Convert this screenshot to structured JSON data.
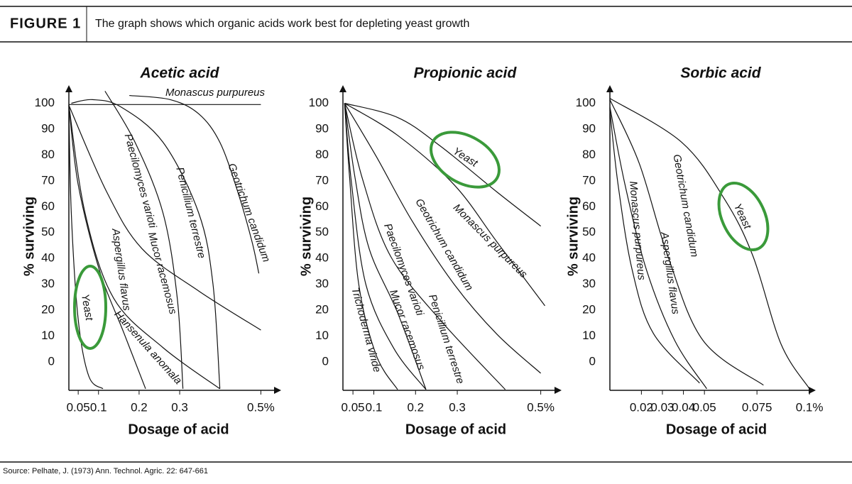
{
  "header": {
    "label": "FIGURE 1",
    "caption": "The graph shows which organic acids work best for depleting yeast growth"
  },
  "source": "Source: Pelhate, J. (1973) Ann. Technol. Agric. 22: 647-661",
  "chart_data": [
    {
      "type": "line",
      "title": "Acetic acid",
      "x_label": "Dosage of acid",
      "y_label": "% surviving",
      "xlim": [
        0.027,
        0.55
      ],
      "ylim": [
        -11,
        107
      ],
      "xticks": [
        0.05,
        0.1,
        0.2,
        0.3,
        {
          "value": 0.5,
          "label": "0.5%"
        }
      ],
      "yticks": [
        0,
        10,
        20,
        30,
        40,
        50,
        60,
        70,
        80,
        90,
        100
      ],
      "series": [
        {
          "name": "Monascus purpureus",
          "color": "#111111",
          "x": [
            0.027,
            0.5
          ],
          "values": [
            99.5,
            99.5
          ]
        },
        {
          "name": "Geotrichum candidum",
          "color": "#111111",
          "x": [
            0.176,
            0.277,
            0.347,
            0.399,
            0.443,
            0.478,
            0.495
          ],
          "values": [
            103,
            101.4,
            95.9,
            84.9,
            65.8,
            46.6,
            34.2
          ]
        },
        {
          "name": "Penicillium terrestre",
          "color": "#111111",
          "x": [
            0.033,
            0.085,
            0.155,
            0.259,
            0.347,
            0.382,
            0.399
          ],
          "values": [
            100,
            101.4,
            98.6,
            84.9,
            57.5,
            30.1,
            -10.4
          ]
        },
        {
          "name": "Paecilomyces varioti",
          "color": "#111111",
          "x": [
            0.116,
            0.19,
            0.259,
            0.294,
            0.308
          ],
          "values": [
            104.7,
            84.9,
            57.5,
            24.7,
            -10.4
          ]
        },
        {
          "name": "Mucor racemosus",
          "color": "#111111",
          "x": [
            0.027,
            0.12,
            0.207,
            0.347,
            0.5
          ],
          "values": [
            99.2,
            65.8,
            43.8,
            27.4,
            12.3
          ]
        },
        {
          "name": "Aspergillus flavus",
          "color": "#111111",
          "x": [
            0.027,
            0.05,
            0.102,
            0.163,
            0.216
          ],
          "values": [
            99.2,
            68.5,
            35.6,
            11,
            -10.4
          ]
        },
        {
          "name": "Hansenula anomala",
          "color": "#111111",
          "x": [
            0.027,
            0.067,
            0.137,
            0.259,
            0.399
          ],
          "values": [
            99.2,
            57.5,
            24.7,
            5.5,
            -10.4
          ]
        },
        {
          "name": "Yeast",
          "color": "#111111",
          "x": [
            0.027,
            0.033,
            0.05,
            0.076,
            0.111
          ],
          "values": [
            99.2,
            57.5,
            16.4,
            -5.5,
            -10.4
          ]
        }
      ]
    },
    {
      "type": "line",
      "title": "Propionic acid",
      "x_label": "Dosage of acid",
      "y_label": "% surviving",
      "xlim": [
        0.026,
        0.55
      ],
      "ylim": [
        -11,
        107
      ],
      "xticks": [
        0.05,
        0.1,
        0.2,
        0.3,
        {
          "value": 0.5,
          "label": "0.5%"
        }
      ],
      "yticks": [
        0,
        10,
        20,
        30,
        40,
        50,
        60,
        70,
        80,
        90,
        100
      ],
      "series": [
        {
          "name": "Yeast",
          "color": "#111111",
          "x": [
            0.03,
            0.157,
            0.259,
            0.395,
            0.5
          ],
          "values": [
            100,
            94.5,
            83.5,
            65.7,
            52.5
          ]
        },
        {
          "name": "Monascus purpureus",
          "color": "#111111",
          "x": [
            0.03,
            0.157,
            0.293,
            0.395,
            0.51
          ],
          "values": [
            100,
            87.6,
            68.4,
            46.4,
            21.7
          ]
        },
        {
          "name": "Geotrichum candidum",
          "color": "#111111",
          "x": [
            0.03,
            0.106,
            0.191,
            0.293,
            0.395,
            0.5
          ],
          "values": [
            100,
            79.4,
            54.7,
            29.9,
            10.7,
            -4.4
          ]
        },
        {
          "name": "Penicillium terrestre",
          "color": "#111111",
          "x": [
            0.03,
            0.072,
            0.14,
            0.259,
            0.415
          ],
          "values": [
            100,
            71.2,
            40.9,
            16.2,
            -10.7
          ]
        },
        {
          "name": "Paecilomyces varioti",
          "color": "#111111",
          "x": [
            0.03,
            0.055,
            0.089,
            0.157,
            0.225
          ],
          "values": [
            100,
            71.2,
            43.7,
            19,
            -10.7
          ]
        },
        {
          "name": "Mucor racemosus",
          "color": "#111111",
          "x": [
            0.03,
            0.047,
            0.081,
            0.148,
            0.225
          ],
          "values": [
            100,
            68.4,
            29.9,
            5.2,
            -10.7
          ]
        },
        {
          "name": "Trichoderma viride",
          "color": "#111111",
          "x": [
            0.03,
            0.042,
            0.064,
            0.106,
            0.157
          ],
          "values": [
            100,
            71.2,
            29.9,
            2.5,
            -10.7
          ]
        }
      ]
    },
    {
      "type": "line",
      "title": "Sorbic acid",
      "x_label": "Dosage of acid",
      "y_label": "% surviving",
      "xlim": [
        0.005,
        0.103
      ],
      "ylim": [
        -11,
        107
      ],
      "xticks": [
        0.02,
        0.03,
        0.04,
        0.05,
        0.075,
        {
          "value": 0.1,
          "label": "0.1%"
        }
      ],
      "yticks": [
        0,
        10,
        20,
        30,
        40,
        50,
        60,
        70,
        80,
        90,
        100
      ],
      "series": [
        {
          "name": "Yeast",
          "color": "#111111",
          "x": [
            0.005,
            0.0392,
            0.0595,
            0.073,
            0.0865,
            0.1
          ],
          "values": [
            101.9,
            84.9,
            63,
            41.1,
            6.8,
            -10.4
          ]
        },
        {
          "name": "Geotrichum candidum",
          "color": "#111111",
          "x": [
            0.005,
            0.019,
            0.0325,
            0.0494,
            0.0781
          ],
          "values": [
            101.4,
            76.7,
            41.1,
            8.2,
            -9
          ]
        },
        {
          "name": "Aspergillus flavus",
          "color": "#111111",
          "x": [
            0.005,
            0.0122,
            0.0224,
            0.0359,
            0.0511
          ],
          "values": [
            98.6,
            68.5,
            35.6,
            8.2,
            -10.4
          ]
        },
        {
          "name": "Monascus purpureus",
          "color": "#111111",
          "x": [
            0.005,
            0.0089,
            0.0156,
            0.0257,
            0.0477
          ],
          "values": [
            97.3,
            68.5,
            35.6,
            11,
            -8.2
          ]
        }
      ]
    }
  ]
}
